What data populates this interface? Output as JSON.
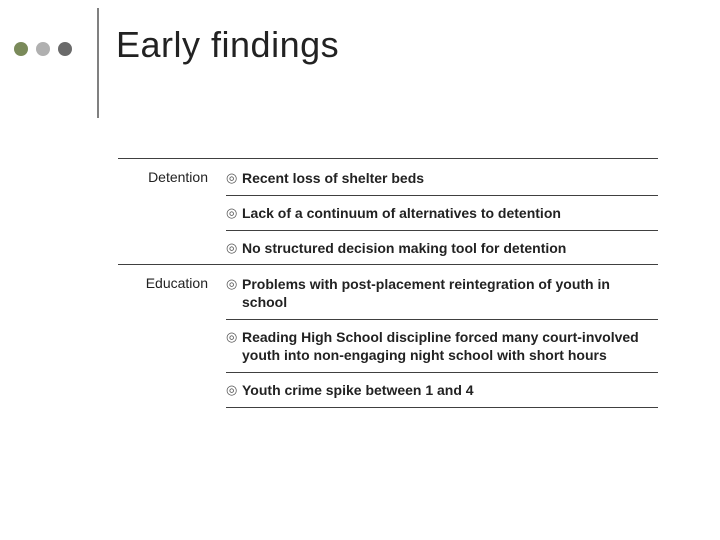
{
  "dots": {
    "colors": [
      "#7a8a5a",
      "#b0b0b0",
      "#6a6a6a"
    ]
  },
  "title": "Early findings",
  "sections": [
    {
      "label": "Detention",
      "bullets": [
        "Recent loss of shelter beds",
        "Lack of a continuum of alternatives to detention",
        "No structured decision making tool for detention"
      ]
    },
    {
      "label": "Education",
      "bullets": [
        "Problems with post-placement reintegration of youth in school",
        "Reading High School discipline forced many court-involved youth into non-engaging night school with short hours",
        "Youth crime spike between 1 and 4"
      ]
    }
  ],
  "bullet_glyph": "◎"
}
